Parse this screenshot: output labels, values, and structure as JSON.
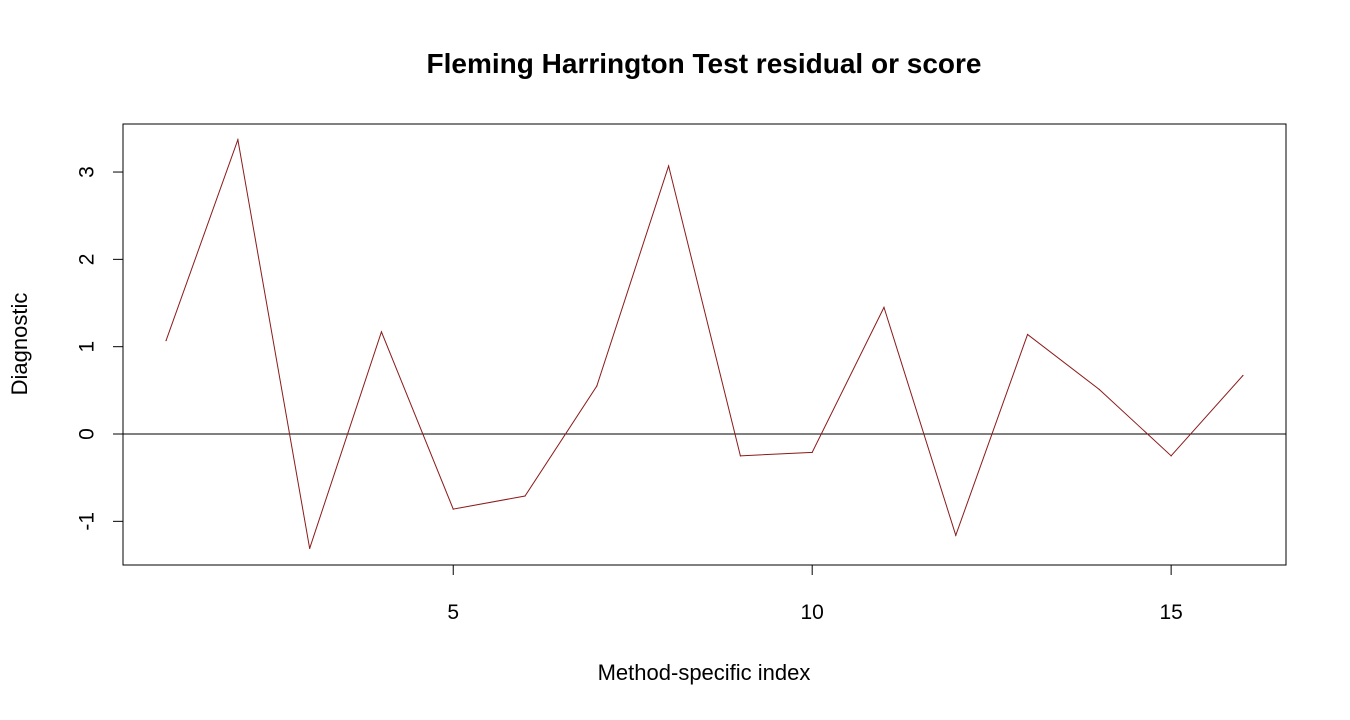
{
  "chart_data": {
    "type": "line",
    "title": "Fleming Harrington Test residual or score",
    "xlabel": "Method-specific index",
    "ylabel": "Diagnostic",
    "xlim": [
      0.4,
      16.6
    ],
    "ylim": [
      -1.5,
      3.55
    ],
    "x_ticks": [
      5,
      10,
      15
    ],
    "x_tick_labels": [
      "5",
      "10",
      "15"
    ],
    "y_ticks": [
      -1,
      0,
      1,
      2,
      3
    ],
    "y_tick_labels": [
      "-1",
      "0",
      "1",
      "2",
      "3"
    ],
    "reference_line_y": 0,
    "grid": false,
    "series": [
      {
        "color": "#8b1a1a",
        "x": [
          1,
          2,
          3,
          4,
          5,
          6,
          7,
          8,
          9,
          10,
          11,
          12,
          13,
          14,
          15,
          16
        ],
        "y": [
          1.07,
          3.37,
          -1.31,
          1.17,
          -0.86,
          -0.71,
          0.55,
          3.07,
          -0.25,
          -0.21,
          1.45,
          -1.16,
          1.14,
          0.51,
          -0.25,
          0.67
        ]
      }
    ]
  }
}
